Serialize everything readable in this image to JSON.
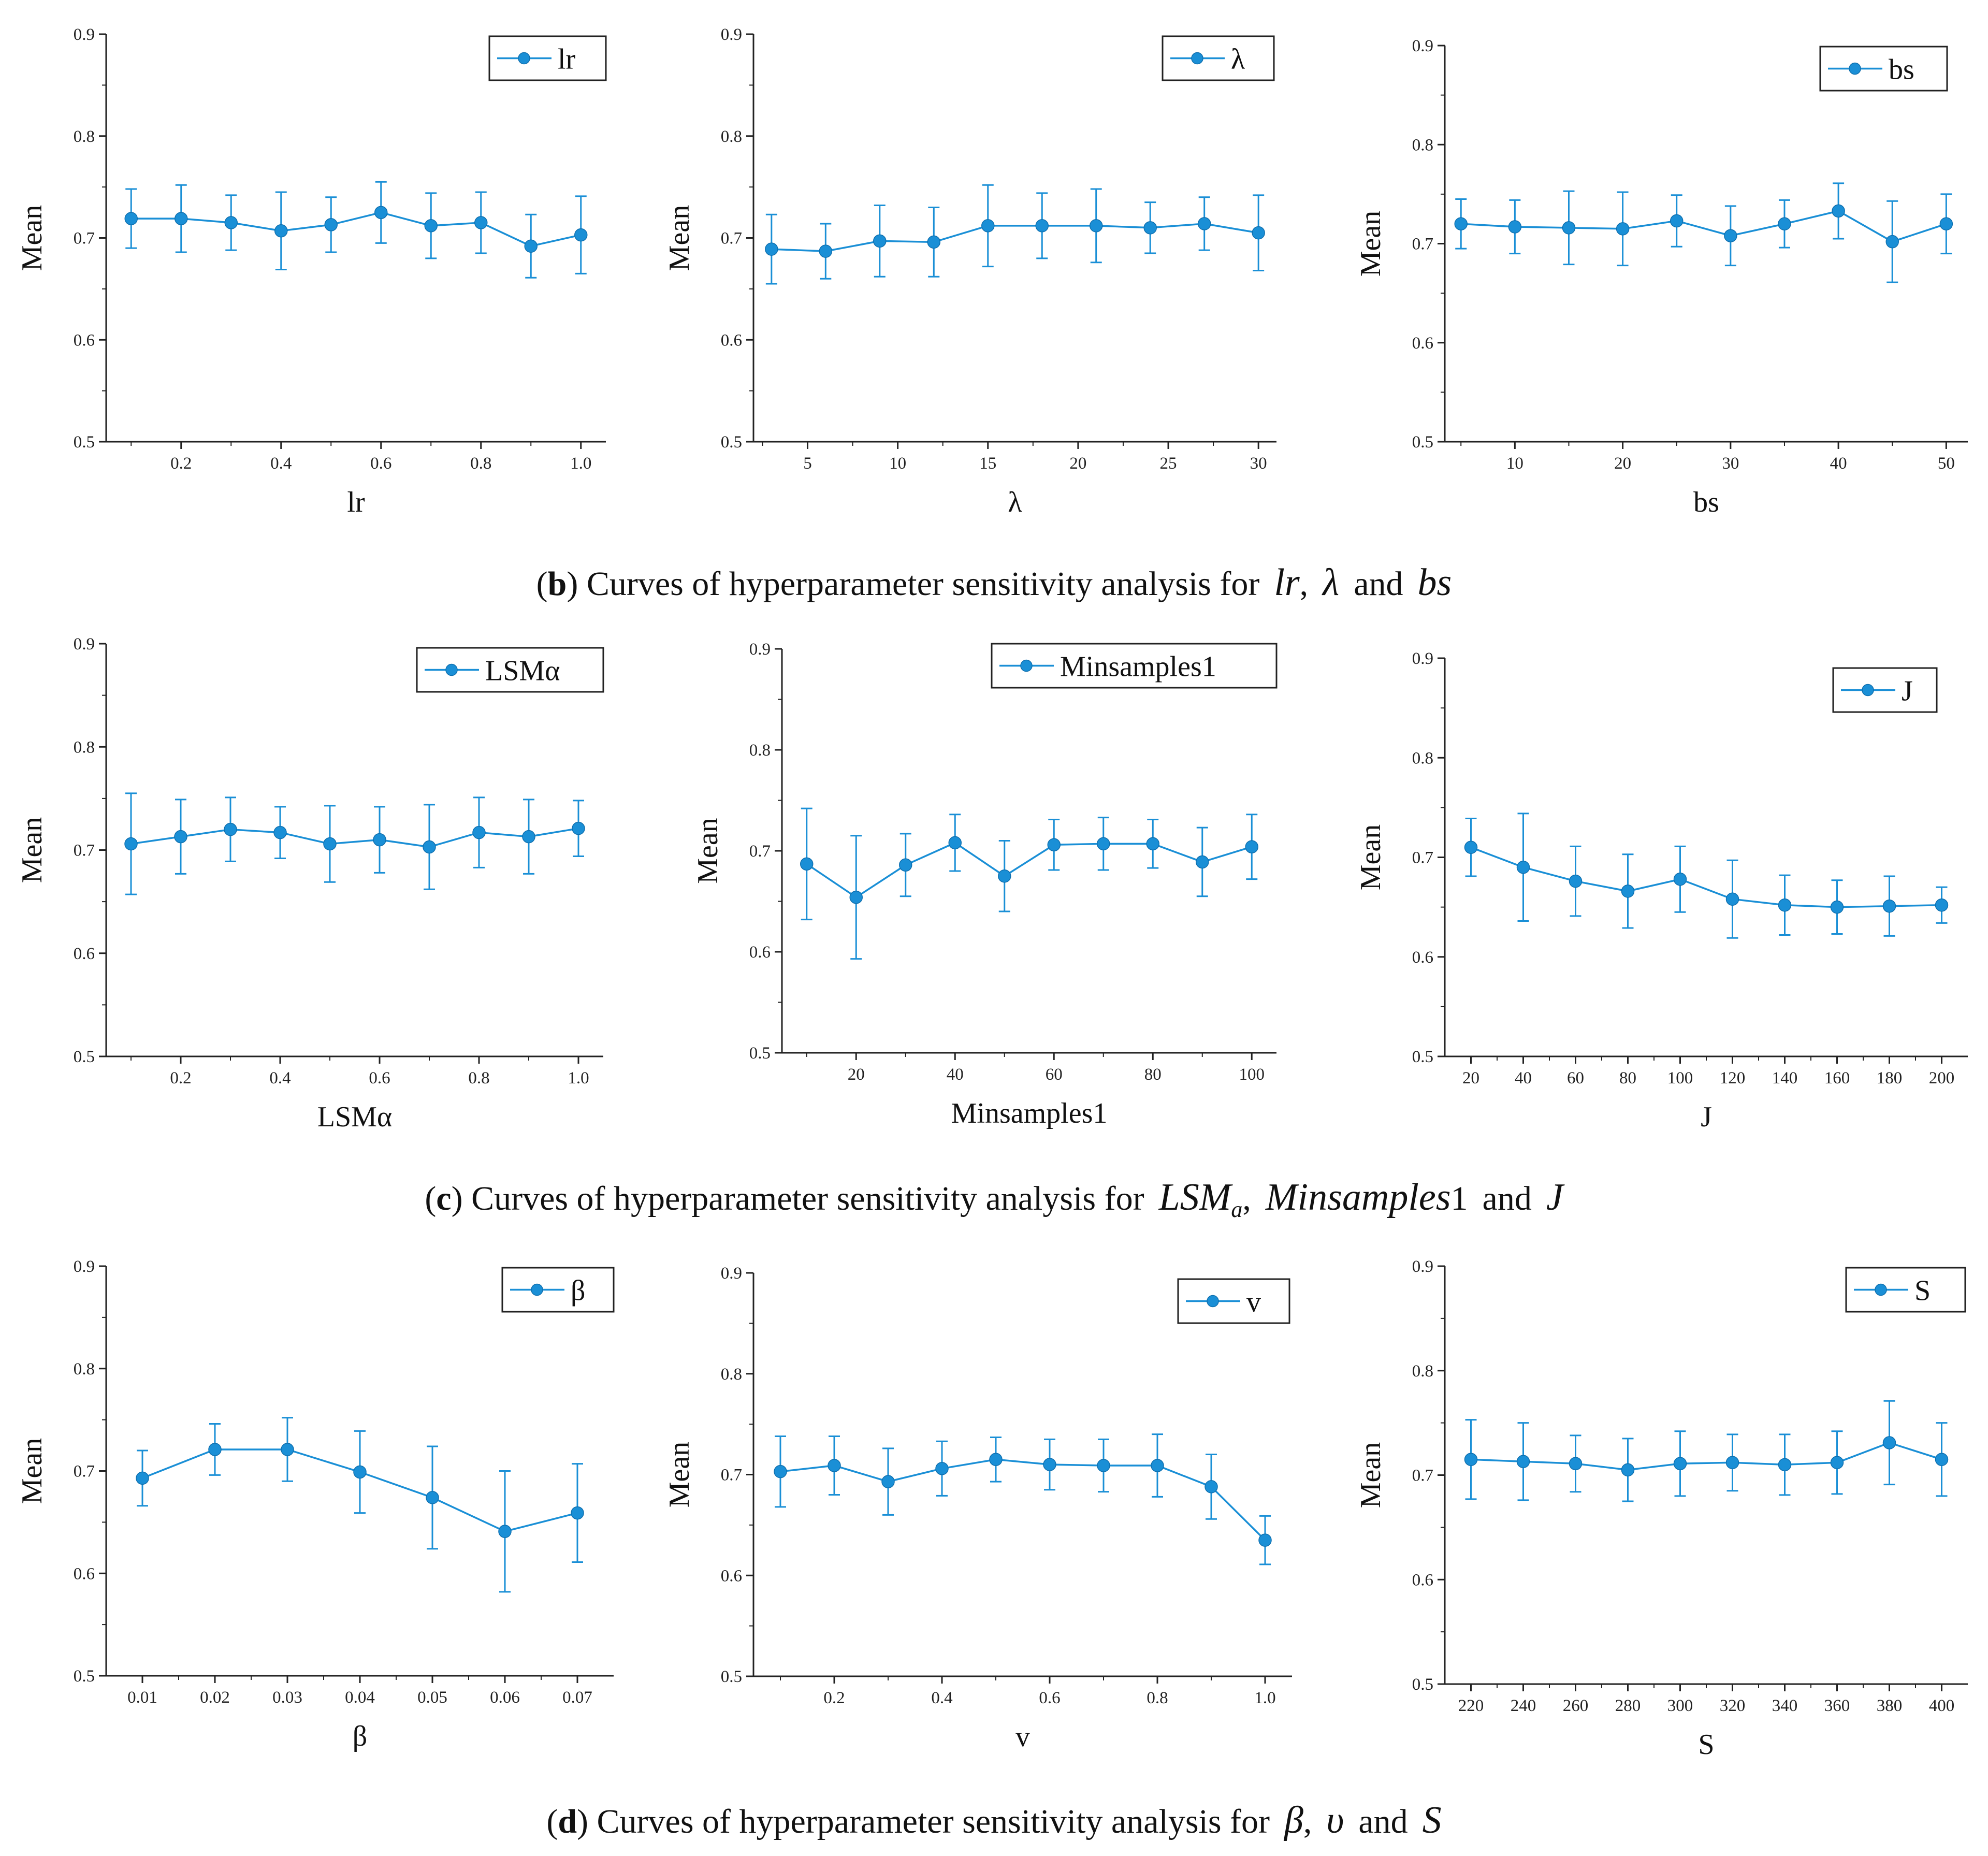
{
  "colors": {
    "line": "#1a8fd6",
    "marker": "#1a8fd6",
    "axis": "#222222",
    "text": "#111111"
  },
  "captions": {
    "b": {
      "label": "b",
      "text": "Curves of hyperparameter sensitivity analysis for",
      "sym1": "lr",
      "comma1": ",",
      "sym2": "λ",
      "and": "and",
      "sym3": "bs"
    },
    "c": {
      "label": "c",
      "text": "Curves of hyperparameter sensitivity analysis for",
      "sym1": "LSM",
      "sym1_sub": "a",
      "comma1": ",",
      "sym2": "Minsamples",
      "sym2_tail": "1",
      "and": "and",
      "sym3": "J"
    },
    "d": {
      "label": "d",
      "text": "Curves of hyperparameter sensitivity analysis for",
      "sym1": "β",
      "comma1": ",",
      "sym2": "υ",
      "and": "and",
      "sym3": "S"
    }
  },
  "chart_data": [
    {
      "type": "line",
      "name": "lr",
      "legend": "lr",
      "xlabel": "lr",
      "ylabel": "Mean",
      "ylim": [
        0.5,
        0.9
      ],
      "xlim": [
        0.05,
        1.05
      ],
      "yticks": [
        "0.5",
        "0.6",
        "0.7",
        "0.8",
        "0.9"
      ],
      "xticks": [
        "0.2",
        "0.4",
        "0.6",
        "0.8",
        "1.0"
      ],
      "x": [
        0.1,
        0.2,
        0.3,
        0.4,
        0.5,
        0.6,
        0.7,
        0.8,
        0.9,
        1.0
      ],
      "y": [
        0.719,
        0.719,
        0.715,
        0.707,
        0.713,
        0.725,
        0.712,
        0.715,
        0.692,
        0.703
      ],
      "err": [
        0.029,
        0.033,
        0.027,
        0.038,
        0.027,
        0.03,
        0.032,
        0.03,
        0.031,
        0.038
      ]
    },
    {
      "type": "line",
      "name": "lambda",
      "legend": "λ",
      "xlabel": "λ",
      "ylabel": "Mean",
      "ylim": [
        0.5,
        0.9
      ],
      "xlim": [
        2,
        31
      ],
      "yticks": [
        "0.5",
        "0.6",
        "0.7",
        "0.8",
        "0.9"
      ],
      "xticks": [
        "5",
        "10",
        "15",
        "20",
        "25",
        "30"
      ],
      "x": [
        3,
        6,
        9,
        12,
        15,
        18,
        21,
        24,
        27,
        30
      ],
      "y": [
        0.689,
        0.687,
        0.697,
        0.696,
        0.712,
        0.712,
        0.712,
        0.71,
        0.714,
        0.705
      ],
      "err": [
        0.034,
        0.027,
        0.035,
        0.034,
        0.04,
        0.032,
        0.036,
        0.025,
        0.026,
        0.037
      ]
    },
    {
      "type": "line",
      "name": "bs",
      "legend": "bs",
      "xlabel": "bs",
      "ylabel": "Mean",
      "ylim": [
        0.5,
        0.9
      ],
      "xlim": [
        3.5,
        52
      ],
      "yticks": [
        "0.5",
        "0.6",
        "0.7",
        "0.8",
        "0.9"
      ],
      "xticks": [
        "10",
        "20",
        "30",
        "40",
        "50"
      ],
      "x": [
        5,
        10,
        15,
        20,
        25,
        30,
        35,
        40,
        45,
        50
      ],
      "y": [
        0.72,
        0.717,
        0.716,
        0.715,
        0.723,
        0.708,
        0.72,
        0.733,
        0.702,
        0.72
      ],
      "err": [
        0.025,
        0.027,
        0.037,
        0.037,
        0.026,
        0.03,
        0.024,
        0.028,
        0.041,
        0.03
      ]
    },
    {
      "type": "line",
      "name": "LSMalpha",
      "legend": "LSMα",
      "xlabel": "LSMα",
      "ylabel": "Mean",
      "ylim": [
        0.5,
        0.9
      ],
      "xlim": [
        0.05,
        1.05
      ],
      "yticks": [
        "0.5",
        "0.6",
        "0.7",
        "0.8",
        "0.9"
      ],
      "xticks": [
        "0.2",
        "0.4",
        "0.6",
        "0.8",
        "1.0"
      ],
      "x": [
        0.1,
        0.2,
        0.3,
        0.4,
        0.5,
        0.6,
        0.7,
        0.8,
        0.9,
        1.0
      ],
      "y": [
        0.706,
        0.713,
        0.72,
        0.717,
        0.706,
        0.71,
        0.703,
        0.717,
        0.713,
        0.721
      ],
      "err": [
        0.049,
        0.036,
        0.031,
        0.025,
        0.037,
        0.032,
        0.041,
        0.034,
        0.036,
        0.027
      ]
    },
    {
      "type": "line",
      "name": "Minsamples1",
      "legend": "Minsamples1",
      "xlabel": "Minsamples1",
      "ylabel": "Mean",
      "ylim": [
        0.5,
        0.9
      ],
      "xlim": [
        5,
        105
      ],
      "yticks": [
        "0.5",
        "0.6",
        "0.7",
        "0.8",
        "0.9"
      ],
      "xticks": [
        "20",
        "40",
        "60",
        "80",
        "100"
      ],
      "x": [
        10,
        20,
        30,
        40,
        50,
        60,
        70,
        80,
        90,
        100
      ],
      "y": [
        0.687,
        0.654,
        0.686,
        0.708,
        0.675,
        0.706,
        0.707,
        0.707,
        0.689,
        0.704
      ],
      "err": [
        0.055,
        0.061,
        0.031,
        0.028,
        0.035,
        0.025,
        0.026,
        0.024,
        0.034,
        0.032
      ]
    },
    {
      "type": "line",
      "name": "J",
      "legend": "J",
      "xlabel": "J",
      "ylabel": "Mean",
      "ylim": [
        0.5,
        0.9
      ],
      "xlim": [
        10,
        210
      ],
      "yticks": [
        "0.5",
        "0.6",
        "0.7",
        "0.8",
        "0.9"
      ],
      "xticks": [
        "20",
        "40",
        "60",
        "80",
        "100",
        "120",
        "140",
        "160",
        "180",
        "200"
      ],
      "x": [
        20,
        40,
        60,
        80,
        100,
        120,
        140,
        160,
        180,
        200
      ],
      "y": [
        0.71,
        0.69,
        0.676,
        0.666,
        0.678,
        0.658,
        0.652,
        0.65,
        0.651,
        0.652
      ],
      "err": [
        0.029,
        0.054,
        0.035,
        0.037,
        0.033,
        0.039,
        0.03,
        0.027,
        0.03,
        0.018
      ]
    },
    {
      "type": "line",
      "name": "beta",
      "legend": "β",
      "xlabel": "β",
      "ylabel": "Mean",
      "ylim": [
        0.5,
        0.9
      ],
      "xlim": [
        0.005,
        0.075
      ],
      "yticks": [
        "0.5",
        "0.6",
        "0.7",
        "0.8",
        "0.9"
      ],
      "xticks": [
        "0.01",
        "0.02",
        "0.03",
        "0.04",
        "0.05",
        "0.06",
        "0.07"
      ],
      "x": [
        0.01,
        0.02,
        0.03,
        0.04,
        0.05,
        0.06,
        0.07
      ],
      "y": [
        0.693,
        0.721,
        0.721,
        0.699,
        0.674,
        0.641,
        0.659
      ],
      "err": [
        0.027,
        0.025,
        0.031,
        0.04,
        0.05,
        0.059,
        0.048
      ]
    },
    {
      "type": "line",
      "name": "nu",
      "legend": "v",
      "xlabel": "v",
      "ylabel": "Mean",
      "ylim": [
        0.5,
        0.9
      ],
      "xlim": [
        0.05,
        1.05
      ],
      "yticks": [
        "0.5",
        "0.6",
        "0.7",
        "0.8",
        "0.9"
      ],
      "xticks": [
        "0.2",
        "0.4",
        "0.6",
        "0.8",
        "1.0"
      ],
      "x": [
        0.1,
        0.2,
        0.3,
        0.4,
        0.5,
        0.6,
        0.7,
        0.8,
        0.9,
        1.0
      ],
      "y": [
        0.703,
        0.709,
        0.693,
        0.706,
        0.715,
        0.71,
        0.709,
        0.709,
        0.688,
        0.635
      ],
      "err": [
        0.035,
        0.029,
        0.033,
        0.027,
        0.022,
        0.025,
        0.026,
        0.031,
        0.032,
        0.024
      ]
    },
    {
      "type": "line",
      "name": "S",
      "legend": "S",
      "xlabel": "S",
      "ylabel": "Mean",
      "ylim": [
        0.5,
        0.9
      ],
      "xlim": [
        210,
        410
      ],
      "yticks": [
        "0.5",
        "0.6",
        "0.7",
        "0.8",
        "0.9"
      ],
      "xticks": [
        "220",
        "240",
        "260",
        "280",
        "300",
        "320",
        "340",
        "360",
        "380",
        "400"
      ],
      "x": [
        220,
        240,
        260,
        280,
        300,
        320,
        340,
        360,
        380,
        400
      ],
      "y": [
        0.715,
        0.713,
        0.711,
        0.705,
        0.711,
        0.712,
        0.71,
        0.712,
        0.731,
        0.715
      ],
      "err": [
        0.038,
        0.037,
        0.027,
        0.03,
        0.031,
        0.027,
        0.029,
        0.03,
        0.04,
        0.035
      ]
    }
  ]
}
